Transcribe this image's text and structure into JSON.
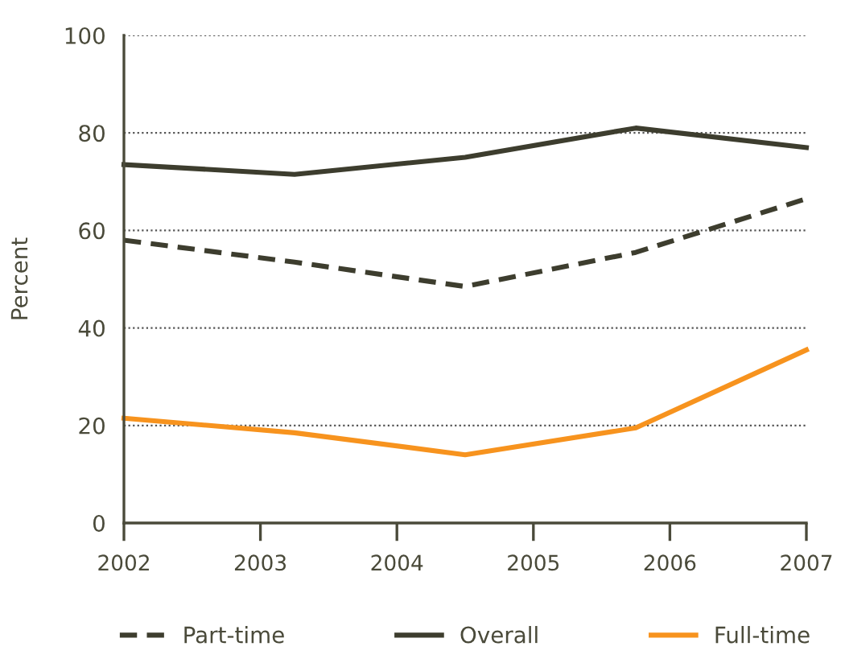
{
  "chart_data": {
    "type": "line",
    "ylabel": "Percent",
    "x": [
      2002,
      2003.25,
      2004.5,
      2005.75,
      2007
    ],
    "series": [
      {
        "name": "Part-time",
        "color": "#3d3d2e",
        "line_style": "dashed",
        "values": [
          58,
          53.5,
          48.5,
          55.5,
          66.5
        ]
      },
      {
        "name": "Overall",
        "color": "#3d3d2e",
        "line_style": "solid",
        "values": [
          73.5,
          71.5,
          75,
          81,
          77
        ]
      },
      {
        "name": "Full-time",
        "color": "#f7931e",
        "line_style": "solid",
        "values": [
          21.5,
          18.5,
          14,
          19.5,
          35.5
        ]
      }
    ],
    "xlim": [
      2002,
      2007
    ],
    "xticks": [
      2002,
      2003,
      2004,
      2005,
      2006,
      2007
    ],
    "ylim": [
      0,
      100
    ],
    "yticks": [
      0,
      20,
      40,
      60,
      80,
      100
    ],
    "grid": "y",
    "legend": "bottom"
  }
}
